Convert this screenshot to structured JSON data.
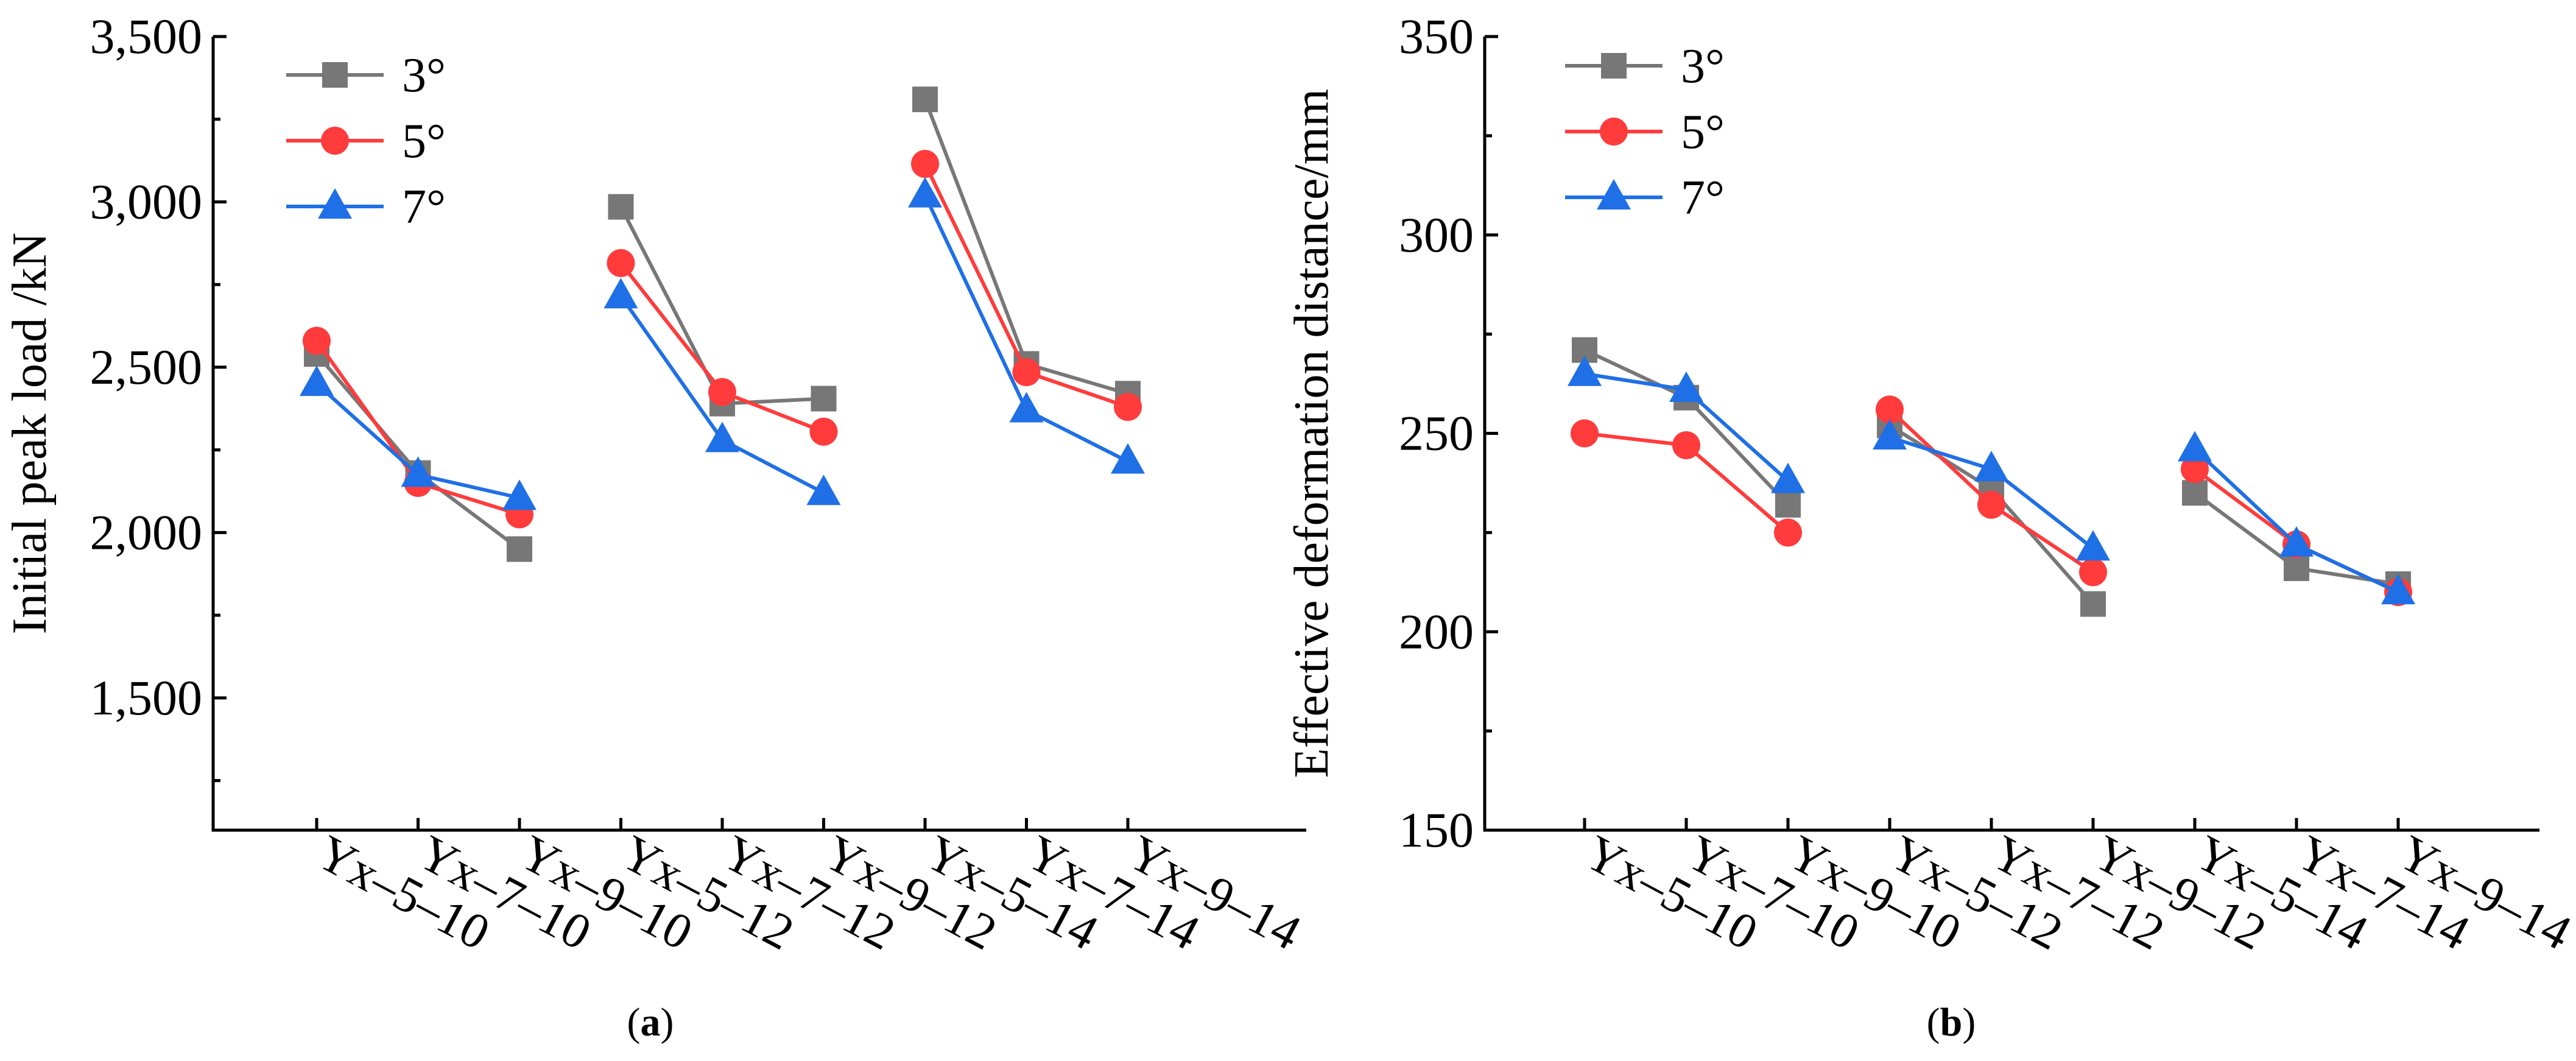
{
  "chart_data": [
    {
      "type": "line",
      "panel": "a",
      "caption": {
        "open": "(",
        "letter": "a",
        "close": ")"
      },
      "title": "",
      "xlabel": "",
      "ylabel": "Initial peak load /kN",
      "ylim": [
        1100,
        3500
      ],
      "yticks": [
        1500,
        2000,
        2500,
        3000,
        3500
      ],
      "ytick_labels": [
        "1,500",
        "2,000",
        "2,500",
        "3,000",
        "3,500"
      ],
      "grid": false,
      "legend_position": "top-left",
      "categories": [
        "Yx–5–10",
        "Yx–7–10",
        "Yx–9–10",
        "Yx–5–12",
        "Yx–7–12",
        "Yx–9–12",
        "Yx–5–14",
        "Yx–7–14",
        "Yx–9–14"
      ],
      "groups": [
        [
          0,
          1,
          2
        ],
        [
          3,
          4,
          5
        ],
        [
          6,
          7,
          8
        ]
      ],
      "series": [
        {
          "name": "3°",
          "color": "#777777",
          "marker": "square",
          "values": [
            2540,
            2180,
            1950,
            2985,
            2390,
            2405,
            3310,
            2510,
            2420
          ]
        },
        {
          "name": "5°",
          "color": "#ff3b3b",
          "marker": "circle",
          "values": [
            2580,
            2150,
            2055,
            2815,
            2425,
            2305,
            3115,
            2485,
            2380
          ]
        },
        {
          "name": "7°",
          "color": "#1f6fe6",
          "marker": "triangle",
          "values": [
            2450,
            2175,
            2105,
            2715,
            2280,
            2120,
            3020,
            2370,
            2215
          ]
        }
      ]
    },
    {
      "type": "line",
      "panel": "b",
      "caption": {
        "open": "(",
        "letter": "b",
        "close": ")"
      },
      "title": "",
      "xlabel": "",
      "ylabel": "Effective deformation distance/mm",
      "ylim": [
        150,
        350
      ],
      "yticks": [
        150,
        200,
        250,
        300,
        350
      ],
      "ytick_labels": [
        "150",
        "200",
        "250",
        "300",
        "350"
      ],
      "grid": false,
      "legend_position": "top-left",
      "categories": [
        "Yx–5–10",
        "Yx–7–10",
        "Yx–9–10",
        "Yx–5–12",
        "Yx–7–12",
        "Yx–9–12",
        "Yx–5–14",
        "Yx–7–14",
        "Yx–9–14"
      ],
      "groups": [
        [
          0,
          1,
          2
        ],
        [
          3,
          4,
          5
        ],
        [
          6,
          7,
          8
        ]
      ],
      "series": [
        {
          "name": "3°",
          "color": "#777777",
          "marker": "square",
          "values": [
            271,
            259,
            232,
            252,
            236,
            207,
            235,
            216,
            212
          ]
        },
        {
          "name": "5°",
          "color": "#ff3b3b",
          "marker": "circle",
          "values": [
            250,
            247,
            225,
            256,
            232,
            215,
            241,
            222,
            210
          ]
        },
        {
          "name": "7°",
          "color": "#1f6fe6",
          "marker": "triangle",
          "values": [
            265,
            261,
            238,
            249,
            241,
            221,
            246,
            222,
            210
          ]
        }
      ]
    }
  ]
}
